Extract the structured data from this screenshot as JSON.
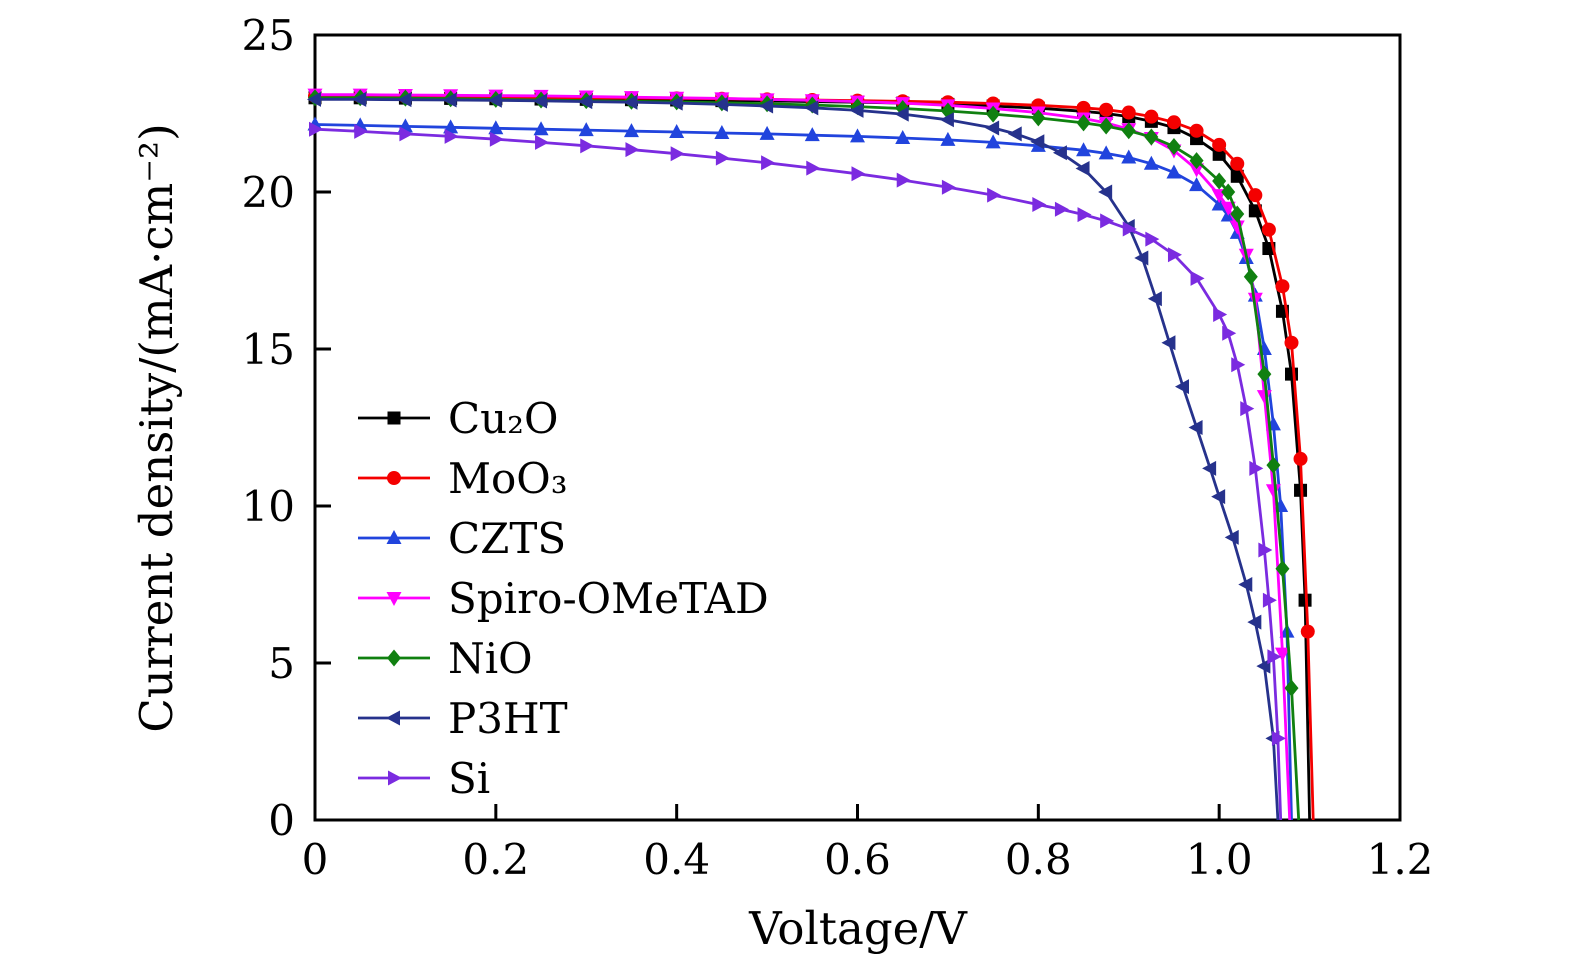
{
  "figure": {
    "background": "#ffffff"
  },
  "chart_data": {
    "type": "line",
    "title": "",
    "xlabel": "Voltage/V",
    "ylabel": "Current density/(mA·cm⁻²)",
    "xlim": [
      0,
      1.2
    ],
    "ylim": [
      0,
      25
    ],
    "x_ticks": [
      "0",
      "0.2",
      "0.4",
      "0.6",
      "0.8",
      "1.0",
      "1.2"
    ],
    "y_ticks": [
      "0",
      "5",
      "10",
      "15",
      "20",
      "25"
    ],
    "grid": false,
    "legend_position": "inside-center-left",
    "series": [
      {
        "name": "Cu₂O",
        "color": "#000000",
        "marker": "square",
        "points": [
          [
            0,
            23.0
          ],
          [
            0.05,
            23.0
          ],
          [
            0.1,
            22.99
          ],
          [
            0.15,
            22.98
          ],
          [
            0.2,
            22.97
          ],
          [
            0.25,
            22.96
          ],
          [
            0.3,
            22.95
          ],
          [
            0.35,
            22.94
          ],
          [
            0.4,
            22.93
          ],
          [
            0.45,
            22.91
          ],
          [
            0.5,
            22.9
          ],
          [
            0.55,
            22.88
          ],
          [
            0.6,
            22.86
          ],
          [
            0.65,
            22.83
          ],
          [
            0.7,
            22.79
          ],
          [
            0.75,
            22.74
          ],
          [
            0.8,
            22.67
          ],
          [
            0.85,
            22.57
          ],
          [
            0.875,
            22.5
          ],
          [
            0.9,
            22.4
          ],
          [
            0.925,
            22.25
          ],
          [
            0.95,
            22.05
          ],
          [
            0.975,
            21.7
          ],
          [
            1.0,
            21.2
          ],
          [
            1.02,
            20.5
          ],
          [
            1.04,
            19.4
          ],
          [
            1.055,
            18.2
          ],
          [
            1.07,
            16.2
          ],
          [
            1.08,
            14.2
          ],
          [
            1.09,
            10.5
          ],
          [
            1.095,
            7.0
          ],
          [
            1.1,
            0
          ]
        ]
      },
      {
        "name": "MoO₃",
        "color": "#f40000",
        "marker": "circle",
        "points": [
          [
            0,
            23.05
          ],
          [
            0.05,
            23.05
          ],
          [
            0.1,
            23.04
          ],
          [
            0.15,
            23.03
          ],
          [
            0.2,
            23.02
          ],
          [
            0.25,
            23.01
          ],
          [
            0.3,
            23.0
          ],
          [
            0.35,
            22.99
          ],
          [
            0.4,
            22.98
          ],
          [
            0.45,
            22.97
          ],
          [
            0.5,
            22.95
          ],
          [
            0.55,
            22.93
          ],
          [
            0.6,
            22.91
          ],
          [
            0.65,
            22.89
          ],
          [
            0.7,
            22.86
          ],
          [
            0.75,
            22.82
          ],
          [
            0.8,
            22.76
          ],
          [
            0.85,
            22.68
          ],
          [
            0.875,
            22.62
          ],
          [
            0.9,
            22.53
          ],
          [
            0.925,
            22.4
          ],
          [
            0.95,
            22.22
          ],
          [
            0.975,
            21.95
          ],
          [
            1.0,
            21.5
          ],
          [
            1.02,
            20.9
          ],
          [
            1.04,
            19.9
          ],
          [
            1.055,
            18.8
          ],
          [
            1.07,
            17.0
          ],
          [
            1.08,
            15.2
          ],
          [
            1.09,
            11.5
          ],
          [
            1.098,
            6.0
          ],
          [
            1.104,
            0
          ]
        ]
      },
      {
        "name": "CZTS",
        "color": "#2144dd",
        "marker": "triangle-up",
        "points": [
          [
            0,
            22.15
          ],
          [
            0.05,
            22.12
          ],
          [
            0.1,
            22.09
          ],
          [
            0.15,
            22.06
          ],
          [
            0.2,
            22.03
          ],
          [
            0.25,
            22.0
          ],
          [
            0.3,
            21.97
          ],
          [
            0.35,
            21.94
          ],
          [
            0.4,
            21.91
          ],
          [
            0.45,
            21.88
          ],
          [
            0.5,
            21.85
          ],
          [
            0.55,
            21.81
          ],
          [
            0.6,
            21.77
          ],
          [
            0.65,
            21.72
          ],
          [
            0.7,
            21.66
          ],
          [
            0.75,
            21.58
          ],
          [
            0.8,
            21.47
          ],
          [
            0.85,
            21.33
          ],
          [
            0.875,
            21.23
          ],
          [
            0.9,
            21.1
          ],
          [
            0.925,
            20.9
          ],
          [
            0.95,
            20.62
          ],
          [
            0.975,
            20.22
          ],
          [
            1.0,
            19.6
          ],
          [
            1.01,
            19.25
          ],
          [
            1.02,
            18.7
          ],
          [
            1.03,
            17.9
          ],
          [
            1.04,
            16.7
          ],
          [
            1.05,
            15.0
          ],
          [
            1.06,
            12.6
          ],
          [
            1.068,
            10.0
          ],
          [
            1.075,
            6.0
          ],
          [
            1.08,
            0
          ]
        ]
      },
      {
        "name": "Spiro-OMeTAD",
        "color": "#ff00ff",
        "marker": "triangle-down",
        "points": [
          [
            0,
            23.1
          ],
          [
            0.05,
            23.1
          ],
          [
            0.1,
            23.09
          ],
          [
            0.15,
            23.08
          ],
          [
            0.2,
            23.07
          ],
          [
            0.25,
            23.06
          ],
          [
            0.3,
            23.04
          ],
          [
            0.35,
            23.02
          ],
          [
            0.4,
            23.0
          ],
          [
            0.45,
            22.98
          ],
          [
            0.5,
            22.95
          ],
          [
            0.55,
            22.92
          ],
          [
            0.6,
            22.88
          ],
          [
            0.65,
            22.83
          ],
          [
            0.7,
            22.76
          ],
          [
            0.75,
            22.66
          ],
          [
            0.8,
            22.53
          ],
          [
            0.85,
            22.34
          ],
          [
            0.875,
            22.2
          ],
          [
            0.9,
            22.0
          ],
          [
            0.925,
            21.72
          ],
          [
            0.95,
            21.32
          ],
          [
            0.975,
            20.72
          ],
          [
            1.0,
            19.9
          ],
          [
            1.01,
            19.5
          ],
          [
            1.02,
            18.9
          ],
          [
            1.03,
            18.0
          ],
          [
            1.04,
            16.6
          ],
          [
            1.05,
            13.5
          ],
          [
            1.06,
            10.5
          ],
          [
            1.07,
            5.3
          ],
          [
            1.078,
            0
          ]
        ]
      },
      {
        "name": "NiO",
        "color": "#108010",
        "marker": "diamond",
        "points": [
          [
            0,
            23.0
          ],
          [
            0.05,
            23.0
          ],
          [
            0.1,
            22.99
          ],
          [
            0.15,
            22.97
          ],
          [
            0.2,
            22.95
          ],
          [
            0.25,
            22.93
          ],
          [
            0.3,
            22.91
          ],
          [
            0.35,
            22.89
          ],
          [
            0.4,
            22.87
          ],
          [
            0.45,
            22.84
          ],
          [
            0.5,
            22.81
          ],
          [
            0.55,
            22.77
          ],
          [
            0.6,
            22.72
          ],
          [
            0.65,
            22.66
          ],
          [
            0.7,
            22.58
          ],
          [
            0.75,
            22.48
          ],
          [
            0.8,
            22.36
          ],
          [
            0.85,
            22.2
          ],
          [
            0.875,
            22.1
          ],
          [
            0.9,
            21.95
          ],
          [
            0.925,
            21.75
          ],
          [
            0.95,
            21.45
          ],
          [
            0.975,
            21.0
          ],
          [
            1.0,
            20.35
          ],
          [
            1.01,
            20.0
          ],
          [
            1.02,
            19.3
          ],
          [
            1.035,
            17.3
          ],
          [
            1.05,
            14.2
          ],
          [
            1.06,
            11.3
          ],
          [
            1.07,
            8.0
          ],
          [
            1.08,
            4.2
          ],
          [
            1.088,
            0
          ]
        ]
      },
      {
        "name": "P3HT",
        "color": "#26328c",
        "marker": "triangle-left",
        "points": [
          [
            0,
            22.95
          ],
          [
            0.05,
            22.95
          ],
          [
            0.1,
            22.94
          ],
          [
            0.15,
            22.93
          ],
          [
            0.2,
            22.92
          ],
          [
            0.25,
            22.9
          ],
          [
            0.3,
            22.88
          ],
          [
            0.35,
            22.86
          ],
          [
            0.4,
            22.83
          ],
          [
            0.45,
            22.79
          ],
          [
            0.5,
            22.74
          ],
          [
            0.55,
            22.68
          ],
          [
            0.6,
            22.6
          ],
          [
            0.65,
            22.48
          ],
          [
            0.7,
            22.3
          ],
          [
            0.75,
            22.04
          ],
          [
            0.775,
            21.85
          ],
          [
            0.8,
            21.6
          ],
          [
            0.825,
            21.25
          ],
          [
            0.85,
            20.75
          ],
          [
            0.875,
            20.0
          ],
          [
            0.9,
            18.9
          ],
          [
            0.915,
            17.9
          ],
          [
            0.93,
            16.6
          ],
          [
            0.945,
            15.2
          ],
          [
            0.96,
            13.8
          ],
          [
            0.975,
            12.5
          ],
          [
            0.99,
            11.2
          ],
          [
            1.0,
            10.3
          ],
          [
            1.015,
            9.0
          ],
          [
            1.03,
            7.5
          ],
          [
            1.04,
            6.3
          ],
          [
            1.05,
            4.9
          ],
          [
            1.06,
            2.6
          ],
          [
            1.065,
            0
          ]
        ]
      },
      {
        "name": "Si",
        "color": "#7b2be0",
        "marker": "triangle-right",
        "points": [
          [
            0,
            22.0
          ],
          [
            0.05,
            21.93
          ],
          [
            0.1,
            21.85
          ],
          [
            0.15,
            21.77
          ],
          [
            0.2,
            21.68
          ],
          [
            0.25,
            21.58
          ],
          [
            0.3,
            21.47
          ],
          [
            0.35,
            21.35
          ],
          [
            0.4,
            21.22
          ],
          [
            0.45,
            21.08
          ],
          [
            0.5,
            20.93
          ],
          [
            0.55,
            20.76
          ],
          [
            0.6,
            20.58
          ],
          [
            0.65,
            20.38
          ],
          [
            0.7,
            20.15
          ],
          [
            0.75,
            19.9
          ],
          [
            0.8,
            19.6
          ],
          [
            0.825,
            19.45
          ],
          [
            0.85,
            19.28
          ],
          [
            0.875,
            19.08
          ],
          [
            0.9,
            18.82
          ],
          [
            0.925,
            18.5
          ],
          [
            0.95,
            18.0
          ],
          [
            0.975,
            17.25
          ],
          [
            1.0,
            16.1
          ],
          [
            1.01,
            15.5
          ],
          [
            1.02,
            14.5
          ],
          [
            1.03,
            13.1
          ],
          [
            1.04,
            11.2
          ],
          [
            1.05,
            8.6
          ],
          [
            1.055,
            7.0
          ],
          [
            1.06,
            5.2
          ],
          [
            1.065,
            2.6
          ],
          [
            1.068,
            0
          ]
        ]
      }
    ]
  }
}
